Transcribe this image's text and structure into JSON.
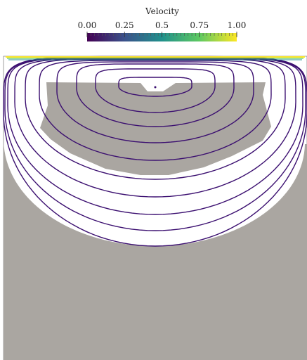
{
  "colorbar": {
    "title": "Velocity",
    "range": [
      0,
      1
    ],
    "ticks": [
      {
        "value": 0,
        "label": "0.00"
      },
      {
        "value": 0.25,
        "label": "0.25"
      },
      {
        "value": 0.5,
        "label": "0.5"
      },
      {
        "value": 0.75,
        "label": "0.75"
      },
      {
        "value": 1,
        "label": "1.00"
      }
    ]
  }
}
